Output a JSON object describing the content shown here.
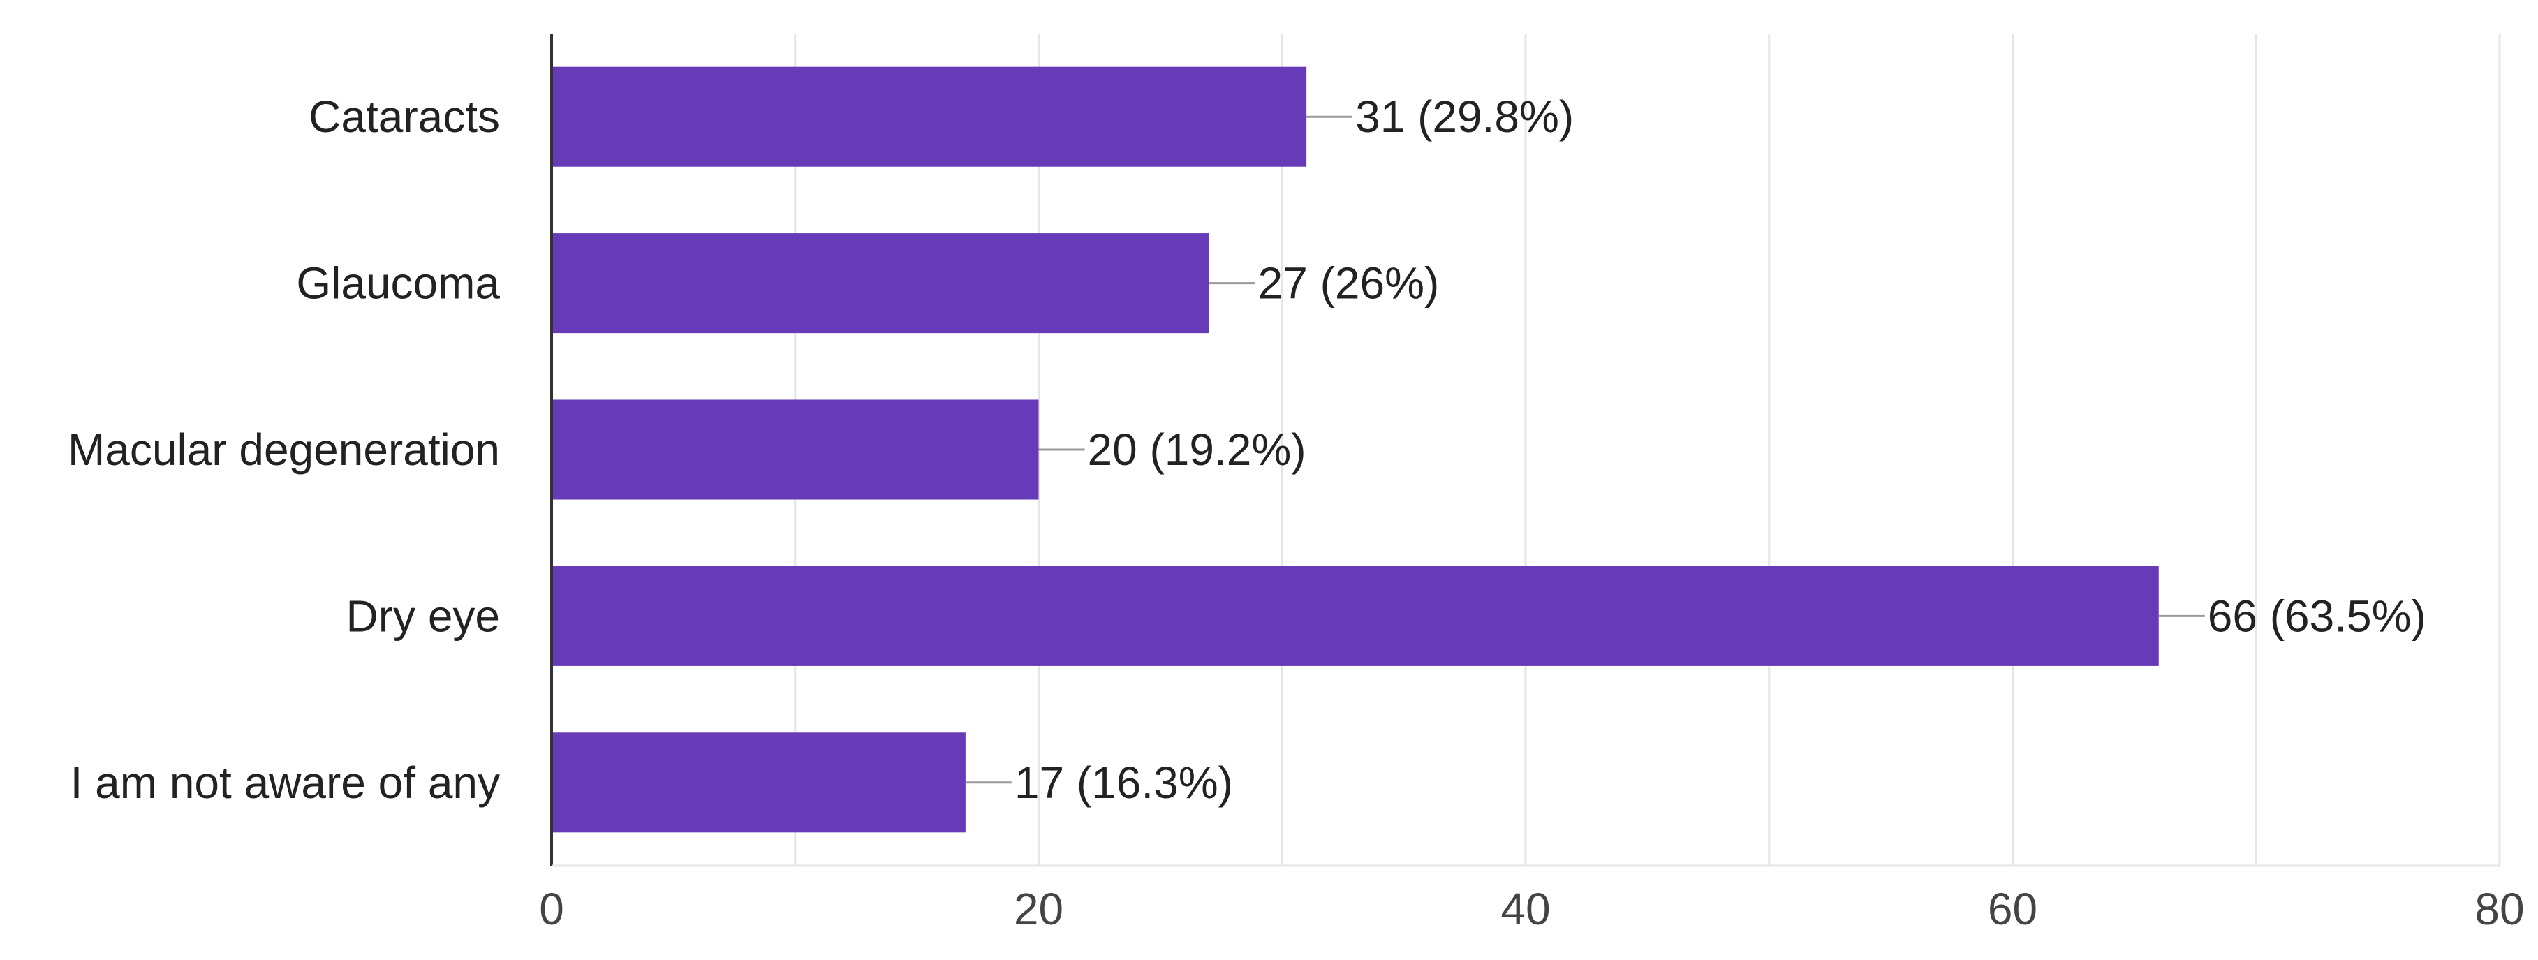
{
  "chart_data": {
    "type": "bar",
    "orientation": "horizontal",
    "categories": [
      "Cataracts",
      "Glaucoma",
      "Macular degeneration",
      "Dry eye",
      "I am not aware of any"
    ],
    "values": [
      31,
      27,
      20,
      66,
      17
    ],
    "data_labels": [
      "31 (29.8%)",
      "27 (26%)",
      "20 (19.2%)",
      "66 (63.5%)",
      "17 (16.3%)"
    ],
    "xlim": [
      0,
      80
    ],
    "x_ticks": [
      0,
      20,
      40,
      60,
      80
    ],
    "grid": true,
    "title": "",
    "xlabel": "",
    "ylabel": "",
    "colors": {
      "bar": "#673AB7",
      "grid": "#E6E6E6",
      "axis": "#333333",
      "leader": "#999999"
    }
  }
}
